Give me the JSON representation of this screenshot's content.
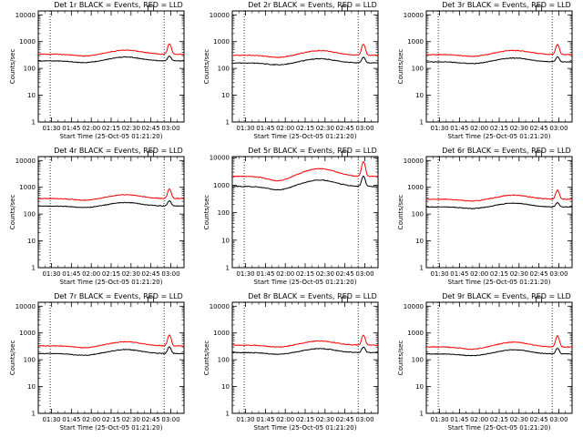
{
  "colors": {
    "events": "#000000",
    "lld": "#ff0000",
    "axis": "#000000",
    "background": "#ffffff"
  },
  "chart_data": [
    {
      "type": "line",
      "title": "Det 1r BLACK = Events, RED = LLD",
      "xlabel": "Start Time (25-Oct-05 01:21:20)",
      "ylabel": "Counts/sec",
      "x_ticks": [
        "01:30",
        "01:45",
        "02:00",
        "02:15",
        "02:30",
        "02:45",
        "03:00"
      ],
      "y_ticks": [
        "1",
        "10",
        "100",
        "1000",
        "10000"
      ],
      "yscale": "log",
      "ylim": [
        1,
        14000
      ],
      "xlim_minutes": [
        -10,
        100
      ],
      "vertical_dotted_lines_minutes": [
        -1,
        85
      ],
      "flare_peak_minutes": 89,
      "series": [
        {
          "name": "Events",
          "color": "#000000",
          "baseline": 190,
          "swell": 75,
          "flare_peak": 290
        },
        {
          "name": "LLD",
          "color": "#ff0000",
          "baseline": 340,
          "swell": 140,
          "flare_peak": 830
        }
      ]
    },
    {
      "type": "line",
      "title": "Det 2r BLACK = Events, RED = LLD",
      "xlabel": "Start Time (25-Oct-05 01:21:20)",
      "ylabel": "Counts/sec",
      "x_ticks": [
        "01:30",
        "01:45",
        "02:00",
        "02:15",
        "02:30",
        "02:45",
        "03:00"
      ],
      "y_ticks": [
        "1",
        "10",
        "100",
        "1000",
        "10000"
      ],
      "yscale": "log",
      "ylim": [
        1,
        14000
      ],
      "xlim_minutes": [
        -10,
        100
      ],
      "vertical_dotted_lines_minutes": [
        -1,
        85
      ],
      "flare_peak_minutes": 89,
      "series": [
        {
          "name": "Events",
          "color": "#000000",
          "baseline": 160,
          "swell": 70,
          "flare_peak": 260
        },
        {
          "name": "LLD",
          "color": "#ff0000",
          "baseline": 310,
          "swell": 150,
          "flare_peak": 800
        }
      ]
    },
    {
      "type": "line",
      "title": "Det 3r BLACK = Events, RED = LLD",
      "xlabel": "Start Time (25-Oct-05 01:21:20)",
      "ylabel": "Counts/sec",
      "x_ticks": [
        "01:30",
        "01:45",
        "02:00",
        "02:15",
        "02:30",
        "02:45",
        "03:00"
      ],
      "y_ticks": [
        "1",
        "10",
        "100",
        "1000",
        "10000"
      ],
      "yscale": "log",
      "ylim": [
        1,
        14000
      ],
      "xlim_minutes": [
        -10,
        100
      ],
      "vertical_dotted_lines_minutes": [
        -1,
        85
      ],
      "flare_peak_minutes": 89,
      "series": [
        {
          "name": "Events",
          "color": "#000000",
          "baseline": 175,
          "swell": 70,
          "flare_peak": 270
        },
        {
          "name": "LLD",
          "color": "#ff0000",
          "baseline": 330,
          "swell": 140,
          "flare_peak": 780
        }
      ]
    },
    {
      "type": "line",
      "title": "Det 4r BLACK = Events, RED = LLD",
      "xlabel": "Start Time (25-Oct-05 01:21:20)",
      "ylabel": "Counts/sec",
      "x_ticks": [
        "01:30",
        "01:45",
        "02:00",
        "02:15",
        "02:30",
        "02:45",
        "03:00"
      ],
      "y_ticks": [
        "1",
        "10",
        "100",
        "1000",
        "10000"
      ],
      "yscale": "log",
      "ylim": [
        1,
        14000
      ],
      "xlim_minutes": [
        -10,
        100
      ],
      "vertical_dotted_lines_minutes": [
        -1,
        85
      ],
      "flare_peak_minutes": 89,
      "series": [
        {
          "name": "Events",
          "color": "#000000",
          "baseline": 200,
          "swell": 70,
          "flare_peak": 310
        },
        {
          "name": "LLD",
          "color": "#ff0000",
          "baseline": 380,
          "swell": 150,
          "flare_peak": 870
        }
      ]
    },
    {
      "type": "line",
      "title": "Det 5r BLACK = Events, RED = LLD",
      "xlabel": "Start Time (25-Oct-05 01:21:20)",
      "ylabel": "Counts/sec",
      "x_ticks": [
        "01:30",
        "01:45",
        "02:00",
        "02:15",
        "02:30",
        "02:45",
        "03:00"
      ],
      "y_ticks": [
        "1",
        "10",
        "100",
        "1000",
        "10000"
      ],
      "yscale": "log",
      "ylim": [
        1,
        11000
      ],
      "xlim_minutes": [
        -10,
        100
      ],
      "vertical_dotted_lines_minutes": [
        -1,
        85
      ],
      "flare_peak_minutes": 89,
      "series": [
        {
          "name": "Events",
          "color": "#000000",
          "baseline": 900,
          "swell": 650,
          "flare_peak": 2100
        },
        {
          "name": "LLD",
          "color": "#ff0000",
          "baseline": 2100,
          "swell": 1900,
          "flare_peak": 7200
        }
      ]
    },
    {
      "type": "line",
      "title": "Det 6r BLACK = Events, RED = LLD",
      "xlabel": "Start Time (25-Oct-05 01:21:20)",
      "ylabel": "Counts/sec",
      "x_ticks": [
        "01:30",
        "01:45",
        "02:00",
        "02:15",
        "02:30",
        "02:45",
        "03:00"
      ],
      "y_ticks": [
        "1",
        "10",
        "100",
        "1000",
        "10000"
      ],
      "yscale": "log",
      "ylim": [
        1,
        14000
      ],
      "xlim_minutes": [
        -10,
        100
      ],
      "vertical_dotted_lines_minutes": [
        -1,
        85
      ],
      "flare_peak_minutes": 89,
      "series": [
        {
          "name": "Events",
          "color": "#000000",
          "baseline": 185,
          "swell": 70,
          "flare_peak": 270
        },
        {
          "name": "LLD",
          "color": "#ff0000",
          "baseline": 360,
          "swell": 150,
          "flare_peak": 780
        }
      ]
    },
    {
      "type": "line",
      "title": "Det 7r BLACK = Events, RED = LLD",
      "xlabel": "Start Time (25-Oct-05 01:21:20)",
      "ylabel": "Counts/sec",
      "x_ticks": [
        "01:30",
        "01:45",
        "02:00",
        "02:15",
        "02:30",
        "02:45",
        "03:00"
      ],
      "y_ticks": [
        "1",
        "10",
        "100",
        "1000",
        "10000"
      ],
      "yscale": "log",
      "ylim": [
        1,
        14000
      ],
      "xlim_minutes": [
        -10,
        100
      ],
      "vertical_dotted_lines_minutes": [
        -1,
        85
      ],
      "flare_peak_minutes": 89,
      "series": [
        {
          "name": "Events",
          "color": "#000000",
          "baseline": 170,
          "swell": 70,
          "flare_peak": 300
        },
        {
          "name": "LLD",
          "color": "#ff0000",
          "baseline": 330,
          "swell": 140,
          "flare_peak": 840
        }
      ]
    },
    {
      "type": "line",
      "title": "Det 8r BLACK = Events, RED = LLD",
      "xlabel": "Start Time (25-Oct-05 01:21:20)",
      "ylabel": "Counts/sec",
      "x_ticks": [
        "01:30",
        "01:45",
        "02:00",
        "02:15",
        "02:30",
        "02:45",
        "03:00"
      ],
      "y_ticks": [
        "1",
        "10",
        "100",
        "1000",
        "10000"
      ],
      "yscale": "log",
      "ylim": [
        1,
        14000
      ],
      "xlim_minutes": [
        -10,
        100
      ],
      "vertical_dotted_lines_minutes": [
        -1,
        85
      ],
      "flare_peak_minutes": 89,
      "series": [
        {
          "name": "Events",
          "color": "#000000",
          "baseline": 185,
          "swell": 75,
          "flare_peak": 300
        },
        {
          "name": "LLD",
          "color": "#ff0000",
          "baseline": 350,
          "swell": 150,
          "flare_peak": 820
        }
      ]
    },
    {
      "type": "line",
      "title": "Det 9r BLACK = Events, RED = LLD",
      "xlabel": "Start Time (25-Oct-05 01:21:20)",
      "ylabel": "Counts/sec",
      "x_ticks": [
        "01:30",
        "01:45",
        "02:00",
        "02:15",
        "02:30",
        "02:45",
        "03:00"
      ],
      "y_ticks": [
        "1",
        "10",
        "100",
        "1000",
        "10000"
      ],
      "yscale": "log",
      "ylim": [
        1,
        14000
      ],
      "xlim_minutes": [
        -10,
        100
      ],
      "vertical_dotted_lines_minutes": [
        -1,
        85
      ],
      "flare_peak_minutes": 89,
      "series": [
        {
          "name": "Events",
          "color": "#000000",
          "baseline": 165,
          "swell": 70,
          "flare_peak": 270
        },
        {
          "name": "LLD",
          "color": "#ff0000",
          "baseline": 300,
          "swell": 150,
          "flare_peak": 780
        }
      ]
    }
  ]
}
